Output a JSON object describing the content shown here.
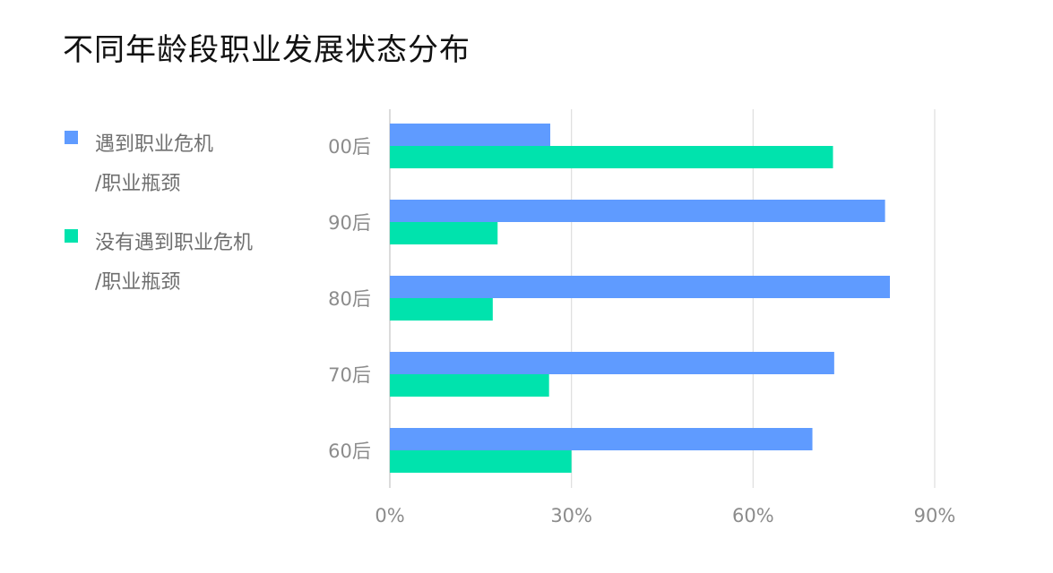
{
  "chart_data": {
    "type": "bar",
    "orientation": "horizontal",
    "title": "不同年龄段职业发展状态分布",
    "categories": [
      "00后",
      "90后",
      "80后",
      "70后",
      "60后"
    ],
    "series": [
      {
        "name": "遇到职业危机\n/职业瓶颈",
        "color": "#5f9bff",
        "values": [
          26.5,
          81.8,
          82.6,
          73.4,
          69.8
        ]
      },
      {
        "name": "没有遇到职业危机\n/职业瓶颈",
        "color": "#00e3ad",
        "values": [
          73.2,
          17.8,
          17.0,
          26.3,
          30.0
        ]
      }
    ],
    "xlim": [
      0,
      90
    ],
    "xticks": [
      0,
      30,
      60,
      90
    ],
    "xtick_labels": [
      "0%",
      "30%",
      "60%",
      "90%"
    ],
    "grid": true,
    "legend_position": "left"
  }
}
